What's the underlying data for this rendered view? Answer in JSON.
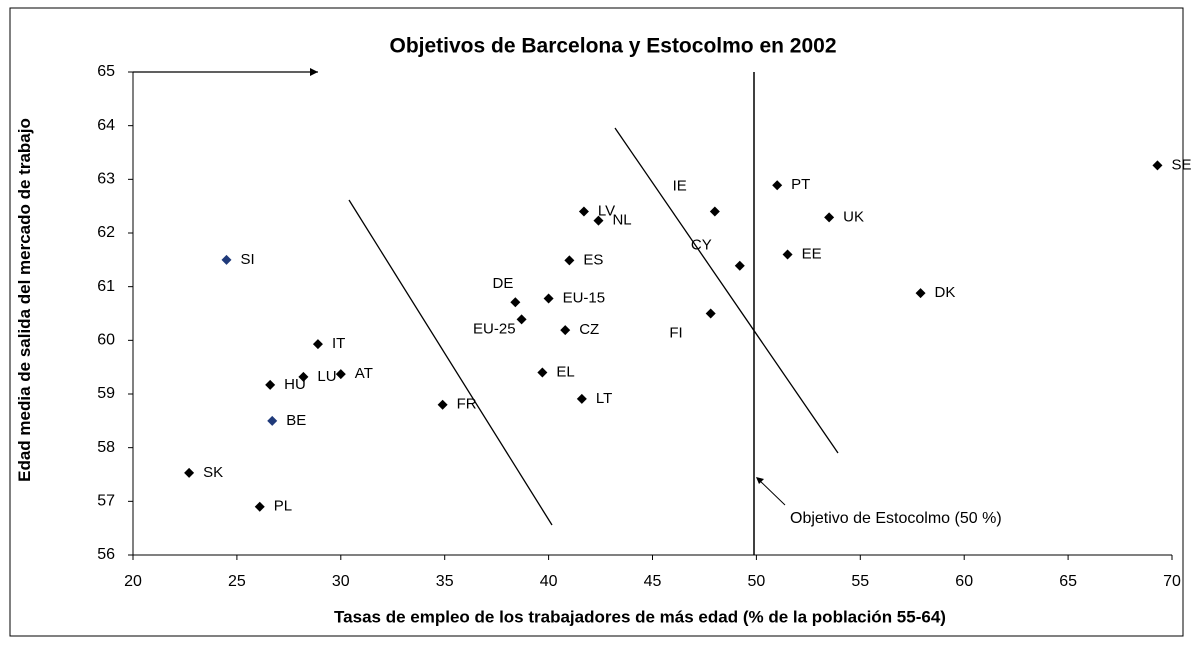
{
  "chart_data": {
    "type": "scatter",
    "title": "Objetivos de Barcelona y Estocolmo en 2002",
    "x_label": "Tasas de empleo de los trabajadores de más edad (% de la población 55-64)",
    "y_label": "Edad media de salida del mercado de trabajo",
    "annotation": "Objetivo de Estocolmo (50 %)",
    "xlim": [
      20,
      70
    ],
    "xticks": [
      20,
      25,
      30,
      35,
      40,
      45,
      50,
      55,
      60,
      65,
      70
    ],
    "ylim": [
      56,
      65
    ],
    "yticks": [
      56,
      57,
      58,
      59,
      60,
      61,
      62,
      63,
      64,
      65
    ],
    "labels": [
      "SE",
      "PT",
      "IE",
      "UK",
      "CY",
      "EE",
      "DK",
      "FI",
      "LV",
      "NL",
      "ES",
      "DE",
      "EU-15",
      "EU-25",
      "CZ",
      "EL",
      "LT",
      "FR",
      "IT",
      "AT",
      "LU",
      "HU",
      "SI",
      "BE",
      "SK",
      "PL"
    ],
    "x": [
      69.3,
      51.0,
      48.0,
      53.5,
      49.2,
      51.5,
      57.9,
      47.8,
      41.7,
      42.4,
      41.0,
      38.4,
      40.0,
      38.7,
      40.8,
      39.7,
      41.6,
      34.9,
      28.9,
      30.0,
      28.2,
      26.6,
      24.5,
      26.7,
      22.7,
      26.1
    ],
    "y": [
      63.26,
      62.89,
      62.4,
      62.29,
      61.39,
      61.6,
      60.88,
      60.5,
      62.4,
      62.23,
      61.49,
      60.71,
      60.78,
      60.39,
      60.19,
      59.4,
      58.91,
      58.8,
      59.93,
      59.37,
      59.32,
      59.17,
      61.5,
      58.5,
      57.53,
      56.9
    ],
    "colors": [
      "#000000",
      "#000000",
      "#000000",
      "#000000",
      "#000000",
      "#000000",
      "#000000",
      "#000000",
      "#000000",
      "#000000",
      "#000000",
      "#000000",
      "#000000",
      "#000000",
      "#000000",
      "#000000",
      "#000000",
      "#000000",
      "#000000",
      "#000000",
      "#000000",
      "#000000",
      "#1f3a7a",
      "#1f3a7a",
      "#000000",
      "#000000"
    ]
  }
}
